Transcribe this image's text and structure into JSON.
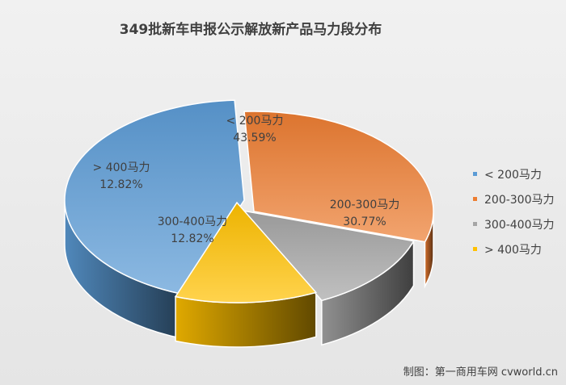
{
  "chart_data": {
    "type": "pie",
    "title": "349批新车申报公示解放新产品马力段分布",
    "categories": [
      "< 200马力",
      "200-300马力",
      "300-400马力",
      "> 400马力"
    ],
    "values": [
      43.59,
      30.77,
      12.82,
      12.82
    ],
    "value_labels": [
      "43.59%",
      "30.77%",
      "12.82%",
      "12.82%"
    ],
    "slice_labels": [
      "< 200马力",
      "200-300马力",
      "300-400马力",
      "> 400马力"
    ],
    "legend": {
      "position": "right",
      "entries": [
        "< 200马力",
        "200-300马力",
        "300-400马力",
        "> 400马力"
      ]
    },
    "style": "3d",
    "colors": [
      "#5b9bd5",
      "#ed7d31",
      "#a5a5a5",
      "#ffc000"
    ]
  },
  "source_note": "制图：第一商用车网 cvworld.cn"
}
